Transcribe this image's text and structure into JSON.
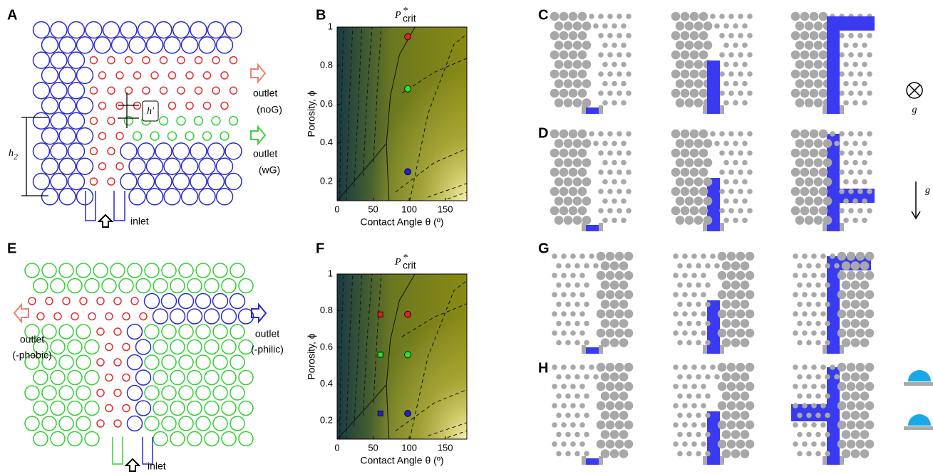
{
  "panel_labels": [
    "A",
    "B",
    "C",
    "D",
    "E",
    "F",
    "G",
    "H"
  ],
  "panel_a": {
    "outlet_top": "outlet",
    "outlet_top_note": "(noG)",
    "outlet_bottom": "outlet",
    "outlet_bottom_note": "(wG)",
    "h2": {
      "base": "h",
      "sub": "2"
    },
    "h_prime": "h′",
    "inlet": "inlet"
  },
  "panel_e": {
    "outlet_left": "outlet",
    "outlet_left_note": "(-phobic)",
    "outlet_right": "outlet",
    "outlet_right_note": "(-philic)",
    "inlet": "inlet"
  },
  "gravity_labels": [
    "g",
    "g"
  ],
  "chart_data": [
    {
      "type": "scatter",
      "title": {
        "base": "P",
        "sup": "*",
        "sub": "crit"
      },
      "xlabel": "Contact Angle θ (º)",
      "ylabel": "Porosity, ϕ",
      "xlim": [
        0,
        180
      ],
      "ylim": [
        0.1,
        1
      ],
      "xticks": [
        0,
        50,
        100,
        150
      ],
      "yticks": [
        0.2,
        0.4,
        0.6,
        0.8,
        1
      ],
      "series": [
        {
          "marker": "circle",
          "x": [
            98,
            98,
            98
          ],
          "values": [
            0.95,
            0.68,
            0.25
          ],
          "colors": [
            "#e02020",
            "#30e030",
            "#2020d0"
          ]
        }
      ]
    },
    {
      "type": "scatter",
      "title": {
        "base": "P",
        "sup": "*",
        "sub": "crit"
      },
      "xlabel": "Contact Angle θ (º)",
      "ylabel": "Porosity, ϕ",
      "xlim": [
        0,
        180
      ],
      "ylim": [
        0.1,
        1
      ],
      "xticks": [
        0,
        50,
        100,
        150
      ],
      "yticks": [
        0.2,
        0.4,
        0.6,
        0.8,
        1
      ],
      "series": [
        {
          "marker": "circle",
          "x": [
            98,
            98,
            98
          ],
          "values": [
            0.78,
            0.56,
            0.24
          ],
          "colors": [
            "#e02020",
            "#30e030",
            "#2020d0"
          ]
        },
        {
          "marker": "square",
          "x": [
            60,
            60,
            60
          ],
          "values": [
            0.78,
            0.56,
            0.24
          ],
          "colors": [
            "#e02020",
            "#30e030",
            "#2020d0"
          ]
        }
      ]
    }
  ]
}
